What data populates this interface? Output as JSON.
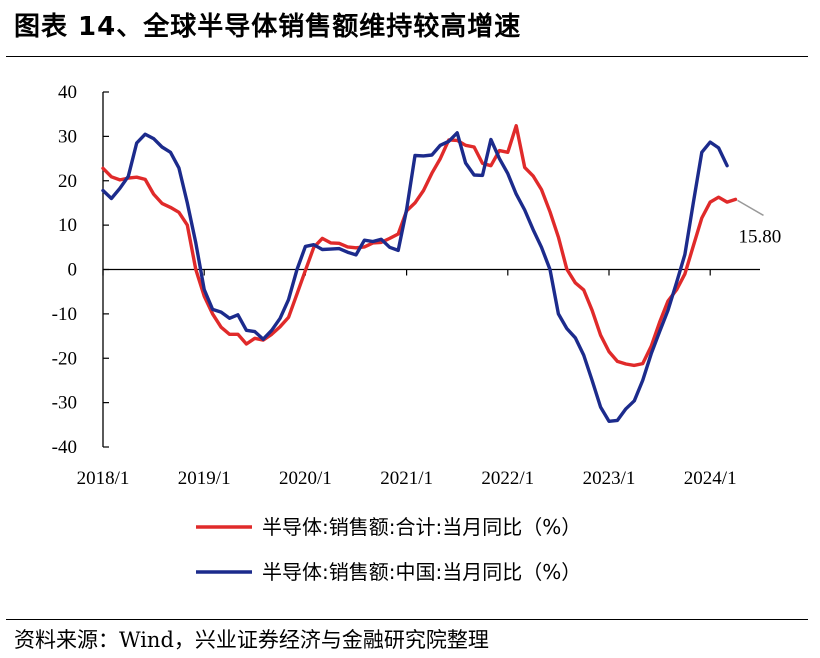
{
  "page": {
    "title": "图表 14、全球半导体销售额维持较高增速",
    "source": "资料来源：Wind，兴业证券经济与金融研究院整理"
  },
  "chart_data": {
    "type": "line",
    "title": "图表 14、全球半导体销售额维持较高增速",
    "xlabel": "",
    "ylabel": "",
    "ylim": [
      -40,
      40
    ],
    "yticks": [
      40,
      30,
      20,
      10,
      0,
      -10,
      -20,
      -30,
      -40
    ],
    "xtick_labels": [
      "2018/1",
      "2019/1",
      "2020/1",
      "2021/1",
      "2022/1",
      "2023/1",
      "2024/1"
    ],
    "x_start": "2018/1",
    "grid": false,
    "legend_position": "bottom",
    "annotation": {
      "text": "15.80",
      "series_index": 0,
      "point_index": 75
    },
    "series": [
      {
        "name": "半导体:销售额:合计:当月同比（%）",
        "color": "#e02a2a",
        "values": [
          22.8,
          20.9,
          20.2,
          20.6,
          20.8,
          20.3,
          17.0,
          14.9,
          14.0,
          12.9,
          10.0,
          0.0,
          -6.0,
          -10.0,
          -13.0,
          -14.6,
          -14.6,
          -16.8,
          -15.5,
          -15.9,
          -14.6,
          -12.9,
          -10.8,
          -5.5,
          -0.2,
          5.0,
          7.0,
          6.0,
          5.9,
          5.1,
          4.9,
          5.1,
          6.0,
          6.1,
          7.0,
          8.0,
          13.2,
          15.0,
          17.8,
          21.7,
          25.0,
          29.2,
          29.1,
          28.0,
          27.6,
          23.9,
          23.4,
          26.8,
          26.4,
          32.4,
          23.0,
          21.1,
          18.0,
          13.0,
          7.3,
          0.1,
          -3.0,
          -4.6,
          -9.2,
          -14.8,
          -18.5,
          -20.7,
          -21.3,
          -21.6,
          -21.2,
          -17.3,
          -11.9,
          -7.1,
          -4.6,
          -1.0,
          5.3,
          11.6,
          15.2,
          16.3,
          15.2,
          15.8
        ]
      },
      {
        "name": "半导体:销售额:中国:当月同比（%）",
        "color": "#1c2b8c",
        "values": [
          17.8,
          16.0,
          18.3,
          21.0,
          28.5,
          30.5,
          29.5,
          27.6,
          26.4,
          22.9,
          15.0,
          6.0,
          -4.5,
          -9.0,
          -9.6,
          -11.0,
          -10.2,
          -13.7,
          -14.0,
          -15.7,
          -13.7,
          -11.0,
          -6.8,
          0.0,
          5.2,
          5.6,
          4.5,
          4.6,
          4.7,
          3.9,
          3.3,
          6.6,
          6.3,
          6.8,
          5.0,
          4.3,
          13.5,
          25.7,
          25.6,
          25.8,
          28.0,
          28.9,
          30.8,
          24.0,
          21.3,
          21.2,
          29.3,
          25.0,
          21.6,
          17.0,
          13.4,
          9.0,
          5.0,
          0.0,
          -10.0,
          -13.3,
          -15.4,
          -19.3,
          -25.0,
          -31.0,
          -34.2,
          -34.0,
          -31.4,
          -29.6,
          -25.0,
          -19.0,
          -14.0,
          -9.2,
          -3.0,
          3.4,
          15.0,
          26.4,
          28.7,
          27.4,
          23.4
        ]
      }
    ]
  }
}
